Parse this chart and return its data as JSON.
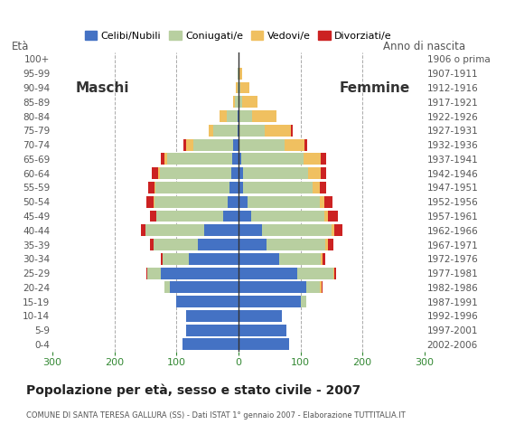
{
  "age_groups": [
    "0-4",
    "5-9",
    "10-14",
    "15-19",
    "20-24",
    "25-29",
    "30-34",
    "35-39",
    "40-44",
    "45-49",
    "50-54",
    "55-59",
    "60-64",
    "65-69",
    "70-74",
    "75-79",
    "80-84",
    "85-89",
    "90-94",
    "95-99",
    "100+"
  ],
  "birth_years": [
    "2002-2006",
    "1997-2001",
    "1992-1996",
    "1987-1991",
    "1982-1986",
    "1977-1981",
    "1972-1976",
    "1967-1971",
    "1962-1966",
    "1957-1961",
    "1952-1956",
    "1947-1951",
    "1942-1946",
    "1937-1941",
    "1932-1936",
    "1927-1931",
    "1922-1926",
    "1917-1921",
    "1912-1916",
    "1907-1911",
    "1906 o prima"
  ],
  "males": {
    "celibe": [
      90,
      85,
      85,
      100,
      110,
      125,
      80,
      65,
      55,
      25,
      18,
      14,
      12,
      10,
      8,
      2,
      1,
      0,
      0,
      0,
      0
    ],
    "coniugato": [
      0,
      0,
      0,
      0,
      10,
      22,
      42,
      72,
      95,
      108,
      118,
      120,
      115,
      105,
      65,
      38,
      18,
      5,
      2,
      1,
      0
    ],
    "vedovo": [
      0,
      0,
      0,
      0,
      0,
      0,
      0,
      0,
      0,
      0,
      1,
      2,
      3,
      4,
      12,
      8,
      12,
      4,
      2,
      0,
      0
    ],
    "divorziato": [
      0,
      0,
      0,
      0,
      0,
      2,
      3,
      6,
      7,
      10,
      12,
      9,
      10,
      6,
      4,
      0,
      0,
      0,
      0,
      0,
      0
    ]
  },
  "females": {
    "celibe": [
      82,
      78,
      70,
      100,
      110,
      95,
      65,
      45,
      38,
      20,
      14,
      8,
      8,
      5,
      2,
      0,
      0,
      0,
      0,
      0,
      0
    ],
    "coniugato": [
      0,
      0,
      0,
      10,
      22,
      58,
      68,
      95,
      112,
      118,
      118,
      112,
      105,
      100,
      72,
      42,
      22,
      6,
      3,
      1,
      0
    ],
    "vedovo": [
      0,
      0,
      0,
      0,
      2,
      2,
      2,
      5,
      5,
      6,
      6,
      12,
      20,
      28,
      32,
      42,
      40,
      25,
      15,
      5,
      2
    ],
    "divorziato": [
      0,
      0,
      0,
      0,
      2,
      2,
      5,
      8,
      12,
      16,
      14,
      9,
      9,
      8,
      5,
      3,
      0,
      0,
      0,
      0,
      0
    ]
  },
  "colors": {
    "celibe": "#4472c4",
    "coniugato": "#b8cfa0",
    "vedovo": "#f0c060",
    "divorziato": "#cc2222"
  },
  "xlim": 300,
  "title": "Popolazione per età, sesso e stato civile - 2007",
  "subtitle": "COMUNE DI SANTA TERESA GALLURA (SS) - Dati ISTAT 1° gennaio 2007 - Elaborazione TUTTITALIA.IT",
  "ylabel_left": "Età",
  "ylabel_right": "Anno di nascita",
  "label_maschi": "Maschi",
  "label_femmine": "Femmine",
  "legend_labels": [
    "Celibi/Nubili",
    "Coniugati/e",
    "Vedovi/e",
    "Divorziati/e"
  ],
  "background_color": "#ffffff",
  "grid_color": "#aaaaaa"
}
